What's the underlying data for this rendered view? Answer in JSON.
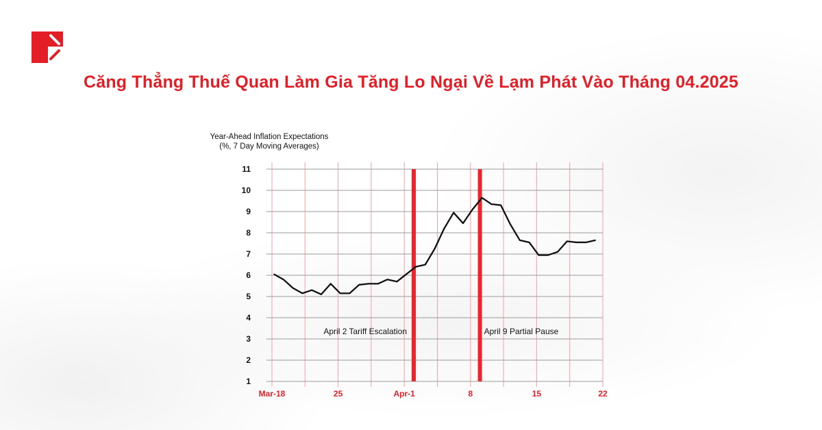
{
  "header": {
    "title": "Căng Thẳng Thuế Quan Làm Gia Tăng Lo Ngại Về Lạm Phát Vào Tháng 04.2025",
    "logo_icon": "brand-logo-icon"
  },
  "colors": {
    "accent": "#e41e26",
    "event_bar": "#f0232b",
    "line": "#111111",
    "grid_vertical": "#f5a0a4",
    "grid_horizontal": "#9a9a9a"
  },
  "chart_data": {
    "type": "line",
    "title_line1": "Year-Ahead Inflation Expectations",
    "title_line2": "(%, 7 Day Moving Averages)",
    "xlabel": "",
    "ylabel": "",
    "ylim": [
      1,
      11
    ],
    "yticks": [
      "1",
      "2",
      "3",
      "4",
      "5",
      "6",
      "7",
      "8",
      "9",
      "10",
      "11"
    ],
    "xticks": [
      {
        "label": "Mar-18",
        "date": "2025-03-18"
      },
      {
        "label": "25",
        "date": "2025-03-25"
      },
      {
        "label": "Apr-1",
        "date": "2025-04-01"
      },
      {
        "label": "8",
        "date": "2025-04-08"
      },
      {
        "label": "15",
        "date": "2025-04-15"
      },
      {
        "label": "22",
        "date": "2025-04-22"
      }
    ],
    "grid": true,
    "x": [
      "2025-03-18",
      "2025-03-19",
      "2025-03-20",
      "2025-03-21",
      "2025-03-22",
      "2025-03-23",
      "2025-03-24",
      "2025-03-25",
      "2025-03-26",
      "2025-03-27",
      "2025-03-28",
      "2025-03-29",
      "2025-03-30",
      "2025-03-31",
      "2025-04-01",
      "2025-04-02",
      "2025-04-03",
      "2025-04-04",
      "2025-04-05",
      "2025-04-06",
      "2025-04-07",
      "2025-04-08",
      "2025-04-09",
      "2025-04-10",
      "2025-04-11",
      "2025-04-12",
      "2025-04-13",
      "2025-04-14",
      "2025-04-15",
      "2025-04-16",
      "2025-04-17",
      "2025-04-18",
      "2025-04-19",
      "2025-04-20",
      "2025-04-21"
    ],
    "values": [
      6.05,
      5.8,
      5.4,
      5.15,
      5.3,
      5.1,
      5.6,
      5.15,
      5.15,
      5.55,
      5.6,
      5.6,
      5.8,
      5.7,
      6.05,
      6.4,
      6.5,
      7.25,
      8.2,
      8.95,
      8.45,
      9.1,
      9.65,
      9.35,
      9.3,
      8.4,
      7.65,
      7.55,
      6.95,
      6.95,
      7.1,
      7.6,
      7.55,
      7.55,
      7.65
    ],
    "annotations": [
      {
        "date": "2025-04-02",
        "label": "April 2 Tariff Escalation"
      },
      {
        "date": "2025-04-09",
        "label": "April 9 Partial Pause"
      }
    ]
  }
}
